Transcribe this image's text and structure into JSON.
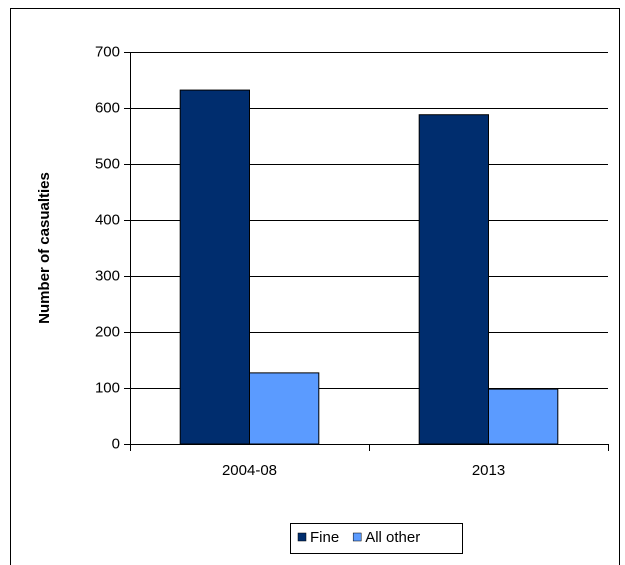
{
  "chart_data": {
    "type": "bar",
    "categories": [
      "2004-08",
      "2013"
    ],
    "series": [
      {
        "name": "Fine",
        "color": "#002d6e",
        "values": [
          632,
          588
        ]
      },
      {
        "name": "All other",
        "color": "#5b9bff",
        "values": [
          127,
          98
        ]
      }
    ],
    "y_label": "Number of casualties",
    "ylim": [
      0,
      700
    ],
    "yticks": [
      0,
      100,
      200,
      300,
      400,
      500,
      600,
      700
    ],
    "grid": true,
    "legend": "bottom"
  }
}
